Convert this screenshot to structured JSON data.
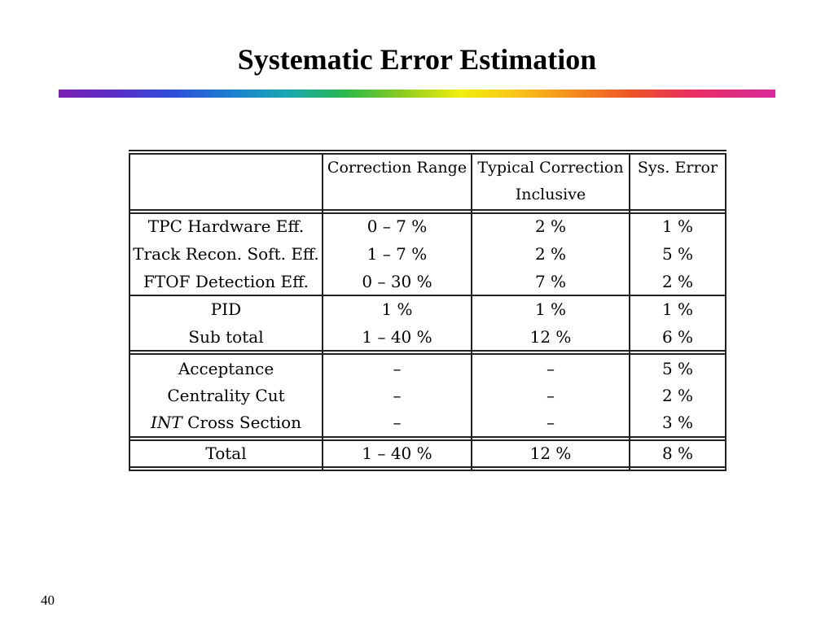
{
  "slide": {
    "title": "Systematic Error Estimation",
    "page_number": "40"
  },
  "table": {
    "headers": {
      "col1": "",
      "col2": "Correction Range",
      "col3_line1": "Typical Correction",
      "col3_line2": "Inclusive",
      "col4": "Sys. Error"
    },
    "group1": [
      {
        "label": "TPC Hardware Eff.",
        "range": "0 – 7 %",
        "typical": "2 %",
        "sys": "1 %"
      },
      {
        "label": "Track Recon. Soft. Eff.",
        "range": "1 – 7 %",
        "typical": "2 %",
        "sys": "5 %"
      },
      {
        "label": "FTOF Detection Eff.",
        "range": "0 – 30 %",
        "typical": "7 %",
        "sys": "2 %"
      }
    ],
    "group2": [
      {
        "label": "PID",
        "range": "1 %",
        "typical": "1 %",
        "sys": "1 %"
      },
      {
        "label": "Sub total",
        "range": "1 – 40 %",
        "typical": "12 %",
        "sys": "6 %"
      }
    ],
    "group3": [
      {
        "label": "Acceptance",
        "range": "–",
        "typical": "–",
        "sys": "5 %"
      },
      {
        "label": "Centrality Cut",
        "range": "–",
        "typical": "–",
        "sys": "2 %"
      },
      {
        "label_italic": "INT",
        "label_rest": " Cross Section",
        "range": "–",
        "typical": "–",
        "sys": "3 %"
      }
    ],
    "total": {
      "label": "Total",
      "range": "1 – 40 %",
      "typical": "12 %",
      "sys": "8 %"
    }
  }
}
